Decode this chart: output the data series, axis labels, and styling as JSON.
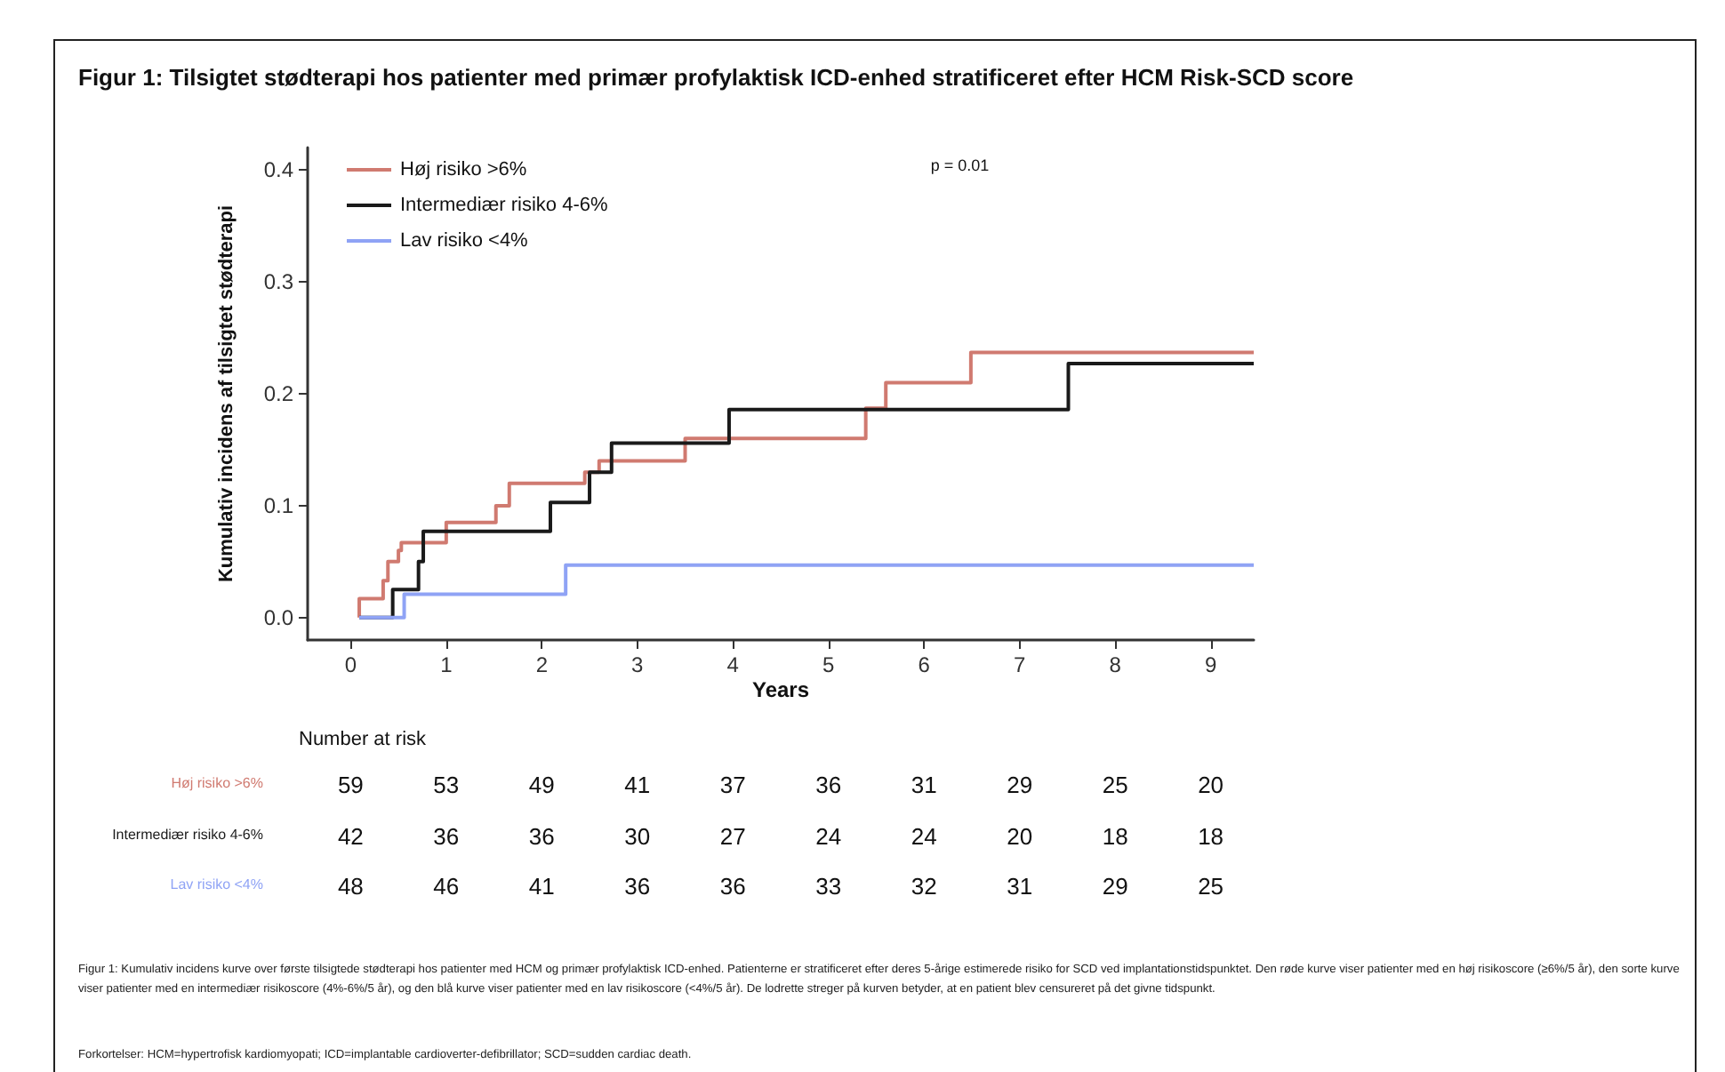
{
  "chart_data": {
    "type": "step",
    "title": "Figur 1: Tilsigtet stødterapi hos patienter med primær profylaktisk ICD-enhed stratificeret efter HCM Risk-SCD score",
    "xlabel": "Years",
    "ylabel": "Kumulativ incidens af tilsigtet stødterapi",
    "xlim": [
      -0.45,
      9.45
    ],
    "xticks": [
      0,
      1,
      2,
      3,
      4,
      5,
      6,
      7,
      8,
      9
    ],
    "ylim": [
      -0.02,
      0.42
    ],
    "yticks": [
      {
        "value": 0,
        "label": "0.0"
      },
      {
        "value": 0.1,
        "label": "0.1"
      },
      {
        "value": 0.2,
        "label": "0.2"
      },
      {
        "value": 0.3,
        "label": "0.3"
      },
      {
        "value": 0.4,
        "label": "0.4"
      }
    ],
    "grid": false,
    "legend": "top left",
    "marker": "none",
    "line_style": "solid",
    "series": [
      {
        "name": "Høj risiko >6%",
        "color": "#d07a70",
        "x": [
          0.09,
          0.09,
          0.34,
          0.39,
          0.5,
          0.53,
          1.0,
          1.52,
          1.66,
          2.45,
          2.6,
          3.5,
          5.39,
          5.6,
          6.49,
          9.45
        ],
        "values": [
          0,
          0.017,
          0.033,
          0.05,
          0.06,
          0.067,
          0.085,
          0.1,
          0.12,
          0.13,
          0.14,
          0.16,
          0.187,
          0.21,
          0.237,
          0.237
        ]
      },
      {
        "name": "Intermediær risiko 4-6%",
        "color": "#1a1a1a",
        "x": [
          0.09,
          0.44,
          0.71,
          0.76,
          2.09,
          2.5,
          2.73,
          3.96,
          7.51,
          9.45
        ],
        "values": [
          0,
          0.025,
          0.05,
          0.077,
          0.103,
          0.13,
          0.156,
          0.186,
          0.227,
          0.227
        ]
      },
      {
        "name": "Lav risiko <4%",
        "color": "#8fa3f5",
        "x": [
          0.09,
          0.56,
          2.25,
          9.45
        ],
        "values": [
          0,
          0.021,
          0.047,
          0.047
        ]
      }
    ],
    "annotations": [
      "p = 0.01",
      "Number at risk",
      "Høj risiko >6%",
      "59 53 49 41 37 36 31 29 25 20",
      "Intermediær risiko 4-6%",
      "42 36 36 30 27 24 24 20 18 18",
      "Lav risiko <4%",
      "48 46 41 36 36 33 32 31 29 25",
      "Figur 1: Kumulativ incidens kurve over første tilsigtede stødterapi hos patienter med HCM og primær profylaktisk ICD-enhed. Patienterne er stratificeret efter deres 5-årige estimerede risiko for SCD ved implantationstidspunktet. Den røde kurve viser patienter med en høj risikoscore (≥6%/5 år), den sorte kurve viser patienter med en intermediær risikoscore (4%-6%/5 år), og den blå kurve viser patienter med en lav risikoscore (<4%/5 år). De lodrette streger på kurven betyder, at en patient blev censureret på det givne tidspunkt.",
      "Forkortelser: HCM=hypertrofisk kardiomyopati; ICD=implantable cardioverter-defibrillator; SCD=sudden cardiac death."
    ]
  }
}
